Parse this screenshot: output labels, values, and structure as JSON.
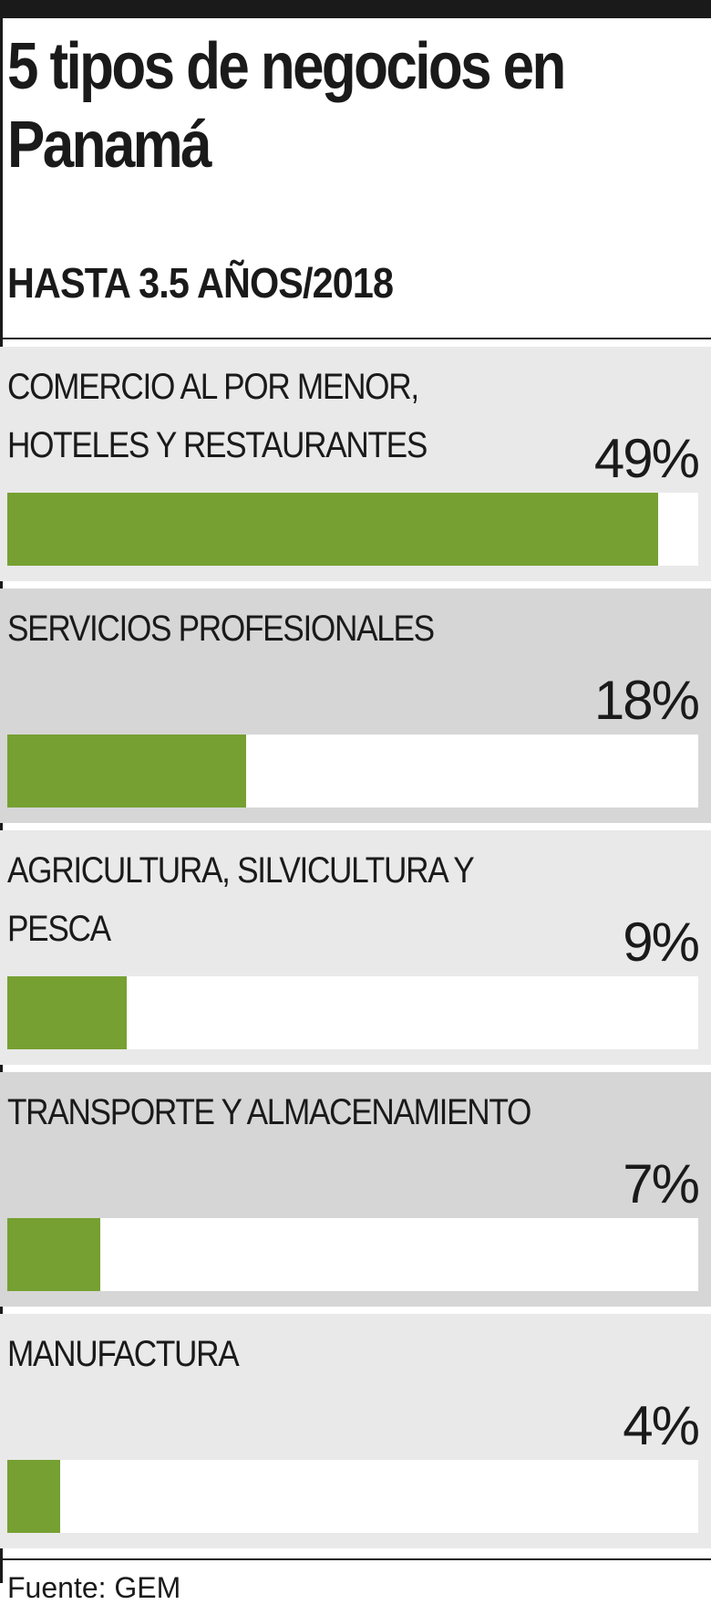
{
  "chart_data": {
    "type": "bar",
    "orientation": "horizontal",
    "title": "5 tipos de negocios en Panamá",
    "subtitle": "HASTA 3.5 AÑOS/2018",
    "categories": [
      "COMERCIO AL POR MENOR, HOTELES Y RESTAURANTES",
      "SERVICIOS PROFESIONALES",
      "AGRICULTURA, SILVICULTURA Y PESCA",
      "TRANSPORTE Y ALMACENAMIENTO",
      "MANUFACTURA"
    ],
    "values": [
      49,
      18,
      9,
      7,
      4
    ],
    "value_labels": [
      "49%",
      "18%",
      "9%",
      "7%",
      "4%"
    ],
    "unit": "%",
    "xlim": [
      0,
      52
    ],
    "grid": false,
    "source": "Fuente: GEM"
  },
  "colors": {
    "bar": "#76a032",
    "panel_light": "#e9e9e9",
    "panel_dark": "#d6d6d6",
    "track": "#ffffff",
    "text": "#1a1a1a"
  }
}
